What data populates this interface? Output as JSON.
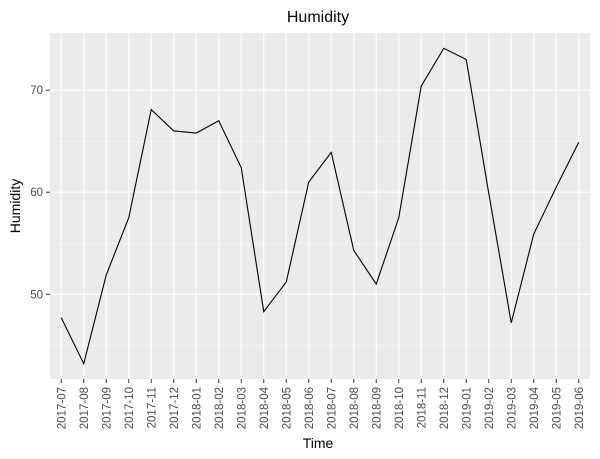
{
  "chart_data": {
    "type": "line",
    "title": "Humidity",
    "xlabel": "Time",
    "ylabel": "Humidity",
    "x": [
      "2017-07",
      "2017-08",
      "2017-09",
      "2017-10",
      "2017-11",
      "2017-12",
      "2018-01",
      "2018-02",
      "2018-03",
      "2018-04",
      "2018-05",
      "2018-06",
      "2018-07",
      "2018-08",
      "2018-09",
      "2018-10",
      "2018-11",
      "2018-12",
      "2019-01",
      "2019-02",
      "2019-03",
      "2019-04",
      "2019-05",
      "2019-06"
    ],
    "series": [
      {
        "values": [
          47.7,
          43.2,
          51.9,
          57.5,
          68.1,
          66.0,
          65.8,
          67.0,
          62.4,
          48.3,
          51.2,
          61.0,
          63.9,
          54.3,
          51.0,
          57.5,
          70.4,
          74.1,
          73.0,
          59.9,
          47.2,
          55.9,
          60.5,
          64.9
        ]
      }
    ],
    "y_ticks": [
      50,
      60,
      70
    ],
    "ylim": [
      41.7,
      75.6
    ],
    "grid": true,
    "background": "#ebebeb",
    "line_color": "#000000"
  }
}
